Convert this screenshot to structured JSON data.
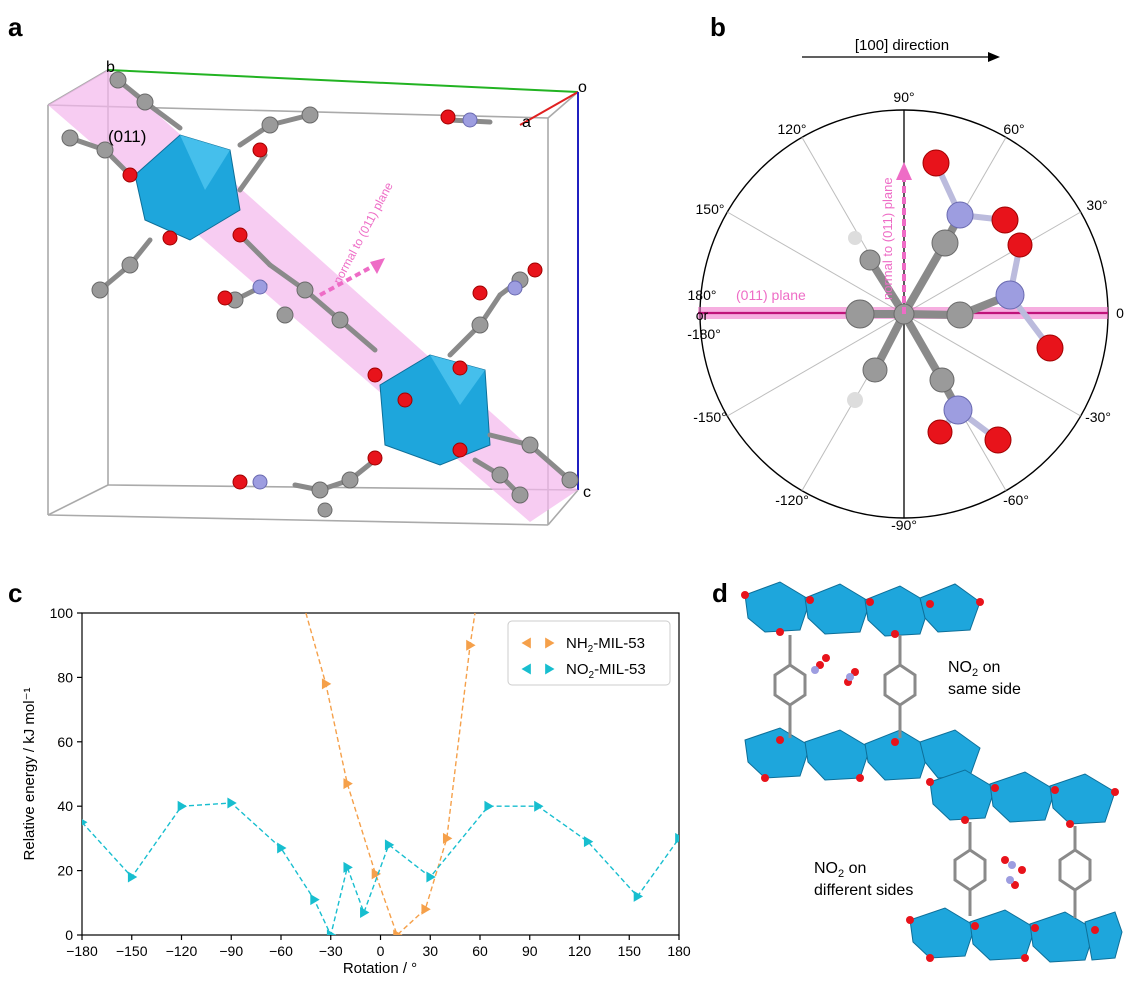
{
  "panels": {
    "a": {
      "letter": "a",
      "axis_b": "b",
      "axis_o": "o",
      "axis_a": "a",
      "axis_c": "c",
      "plane_label": "(011)",
      "normal_label": "normal to (011) plane"
    },
    "b": {
      "letter": "b",
      "direction_label": "[100] direction",
      "angle_labels": [
        "90°",
        "60°",
        "30°",
        "0",
        "-30°",
        "-60°",
        "-90°",
        "-120°",
        "-150°",
        "-180°",
        "150°",
        "120°"
      ],
      "angle_180": "180°",
      "angle_or": "or",
      "plane_label": "(011) plane",
      "normal_label": "normal to (011) plane"
    },
    "c": {
      "letter": "c"
    },
    "d": {
      "letter": "d",
      "same_side_line1": "NO",
      "same_side_sub": "2",
      "same_side_line1b": " on",
      "same_side_line2": "same side",
      "diff_side_line1": "NO",
      "diff_side_sub": "2",
      "diff_side_line1b": " on",
      "diff_side_line2": "different sides"
    }
  },
  "colors": {
    "cyan": "#17becf",
    "orange": "#f5a04a",
    "pink": "#e0509a",
    "polyhedron": "#1ea6dc",
    "oxygen": "#e8131b",
    "nitrogen": "#9d9de0",
    "carbon": "#9a9a9a"
  },
  "chart_data": {
    "type": "line",
    "xlabel": "Rotation / °",
    "ylabel": "Relative energy / kJ mol⁻¹",
    "xlim": [
      -180,
      180
    ],
    "ylim": [
      0,
      100
    ],
    "xticks": [
      -180,
      -150,
      -120,
      -90,
      -60,
      -30,
      0,
      30,
      60,
      90,
      120,
      150,
      180
    ],
    "yticks": [
      0,
      20,
      40,
      60,
      80,
      100
    ],
    "legend_position": "top-right",
    "series": [
      {
        "name": "NH₂-MIL-53",
        "name_prefix": "NH",
        "name_sub": "2",
        "name_suffix": "-MIL-53",
        "color": "#f5a04a",
        "x": [
          -45,
          -33,
          -20,
          -3,
          10,
          27,
          40,
          54,
          57
        ],
        "y": [
          100,
          78,
          47,
          19,
          0,
          8,
          30,
          90,
          100
        ]
      },
      {
        "name": "NO₂-MIL-53",
        "name_prefix": "NO",
        "name_sub": "2",
        "name_suffix": "-MIL-53",
        "color": "#17becf",
        "x": [
          -180,
          -150,
          -120,
          -90,
          -60,
          -40,
          -30,
          -20,
          -10,
          5,
          30,
          65,
          95,
          125,
          155,
          180
        ],
        "y": [
          35,
          18,
          40,
          41,
          27,
          11,
          0,
          21,
          7,
          28,
          18,
          40,
          40,
          29,
          12,
          30
        ]
      }
    ]
  }
}
